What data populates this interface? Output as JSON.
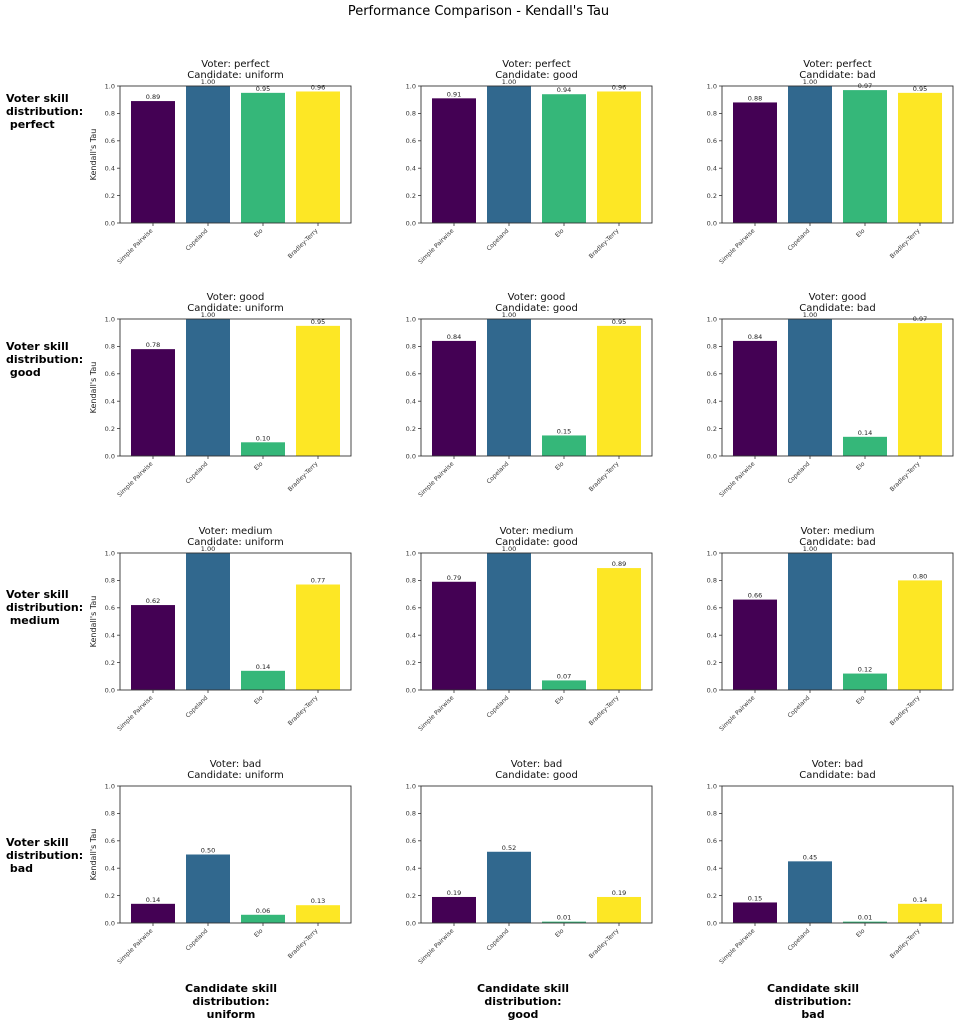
{
  "chart_data": {
    "type": "bar",
    "title": "Performance Comparison - Kendall's Tau",
    "ylabel": "Kendall's Tau",
    "ylim": [
      0,
      1.0
    ],
    "yticks": [
      "0.0",
      "0.2",
      "0.4",
      "0.6",
      "0.8",
      "1.0"
    ],
    "categories": [
      "Simple Pairwise",
      "Copeland",
      "Elo",
      "Bradley-Terry"
    ],
    "colors": [
      "#440154",
      "#31688e",
      "#35b779",
      "#fde725"
    ],
    "row_labels": [
      "Voter skill\ndistribution:\n perfect",
      "Voter skill\ndistribution:\n good",
      "Voter skill\ndistribution:\n medium",
      "Voter skill\ndistribution:\n bad"
    ],
    "col_labels": [
      "Candidate skill\ndistribution:\nuniform",
      "Candidate skill\ndistribution:\ngood",
      "Candidate skill\ndistribution:\nbad"
    ],
    "panels": [
      {
        "voter": "perfect",
        "candidate": "uniform",
        "title": "Voter: perfect\nCandidate: uniform",
        "values": [
          0.89,
          1.0,
          0.95,
          0.96
        ]
      },
      {
        "voter": "perfect",
        "candidate": "good",
        "title": "Voter: perfect\nCandidate: good",
        "values": [
          0.91,
          1.0,
          0.94,
          0.96
        ]
      },
      {
        "voter": "perfect",
        "candidate": "bad",
        "title": "Voter: perfect\nCandidate: bad",
        "values": [
          0.88,
          1.0,
          0.97,
          0.95
        ]
      },
      {
        "voter": "good",
        "candidate": "uniform",
        "title": "Voter: good\nCandidate: uniform",
        "values": [
          0.78,
          1.0,
          0.1,
          0.95
        ]
      },
      {
        "voter": "good",
        "candidate": "good",
        "title": "Voter: good\nCandidate: good",
        "values": [
          0.84,
          1.0,
          0.15,
          0.95
        ]
      },
      {
        "voter": "good",
        "candidate": "bad",
        "title": "Voter: good\nCandidate: bad",
        "values": [
          0.84,
          1.0,
          0.14,
          0.97
        ]
      },
      {
        "voter": "medium",
        "candidate": "uniform",
        "title": "Voter: medium\nCandidate: uniform",
        "values": [
          0.62,
          1.0,
          0.14,
          0.77
        ]
      },
      {
        "voter": "medium",
        "candidate": "good",
        "title": "Voter: medium\nCandidate: good",
        "values": [
          0.79,
          1.0,
          0.07,
          0.89
        ]
      },
      {
        "voter": "medium",
        "candidate": "bad",
        "title": "Voter: medium\nCandidate: bad",
        "values": [
          0.66,
          1.0,
          0.12,
          0.8
        ]
      },
      {
        "voter": "bad",
        "candidate": "uniform",
        "title": "Voter: bad\nCandidate: uniform",
        "values": [
          0.14,
          0.5,
          0.06,
          0.13
        ]
      },
      {
        "voter": "bad",
        "candidate": "good",
        "title": "Voter: bad\nCandidate: good",
        "values": [
          0.19,
          0.52,
          0.01,
          0.19
        ]
      },
      {
        "voter": "bad",
        "candidate": "bad",
        "title": "Voter: bad\nCandidate: bad",
        "values": [
          0.15,
          0.45,
          0.01,
          0.14
        ]
      }
    ]
  }
}
